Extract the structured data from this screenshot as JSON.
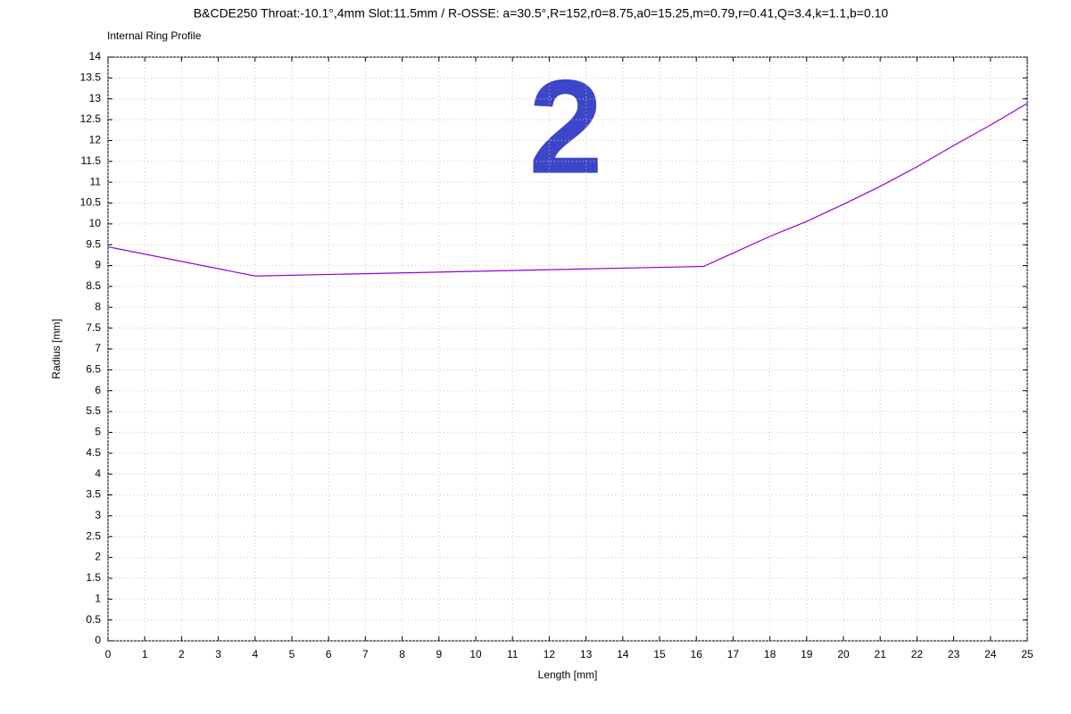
{
  "chart_data": {
    "type": "line",
    "title": "B&CDE250 Throat:-10.1°,4mm Slot:11.5mm / R-OSSE: a=30.5°,R=152,r0=8.75,a0=15.25,m=0.79,r=0.41,Q=3.4,k=1.1,b=0.10",
    "subtitle": "Internal Ring Profile",
    "annotation": "2",
    "x_label": "Length [mm]",
    "y_label": "Radius [mm]",
    "x": [
      0,
      4,
      16.2,
      17,
      18,
      19,
      20,
      21,
      22,
      23,
      24,
      25
    ],
    "series": [
      {
        "color": "#9400d3",
        "values": [
          9.45,
          8.75,
          8.98,
          9.3,
          9.7,
          10.06,
          10.47,
          10.9,
          11.37,
          11.88,
          12.37,
          12.89
        ]
      }
    ],
    "xlim": [
      0,
      25
    ],
    "ylim": [
      0,
      14
    ],
    "xticks": [
      0,
      1,
      2,
      3,
      4,
      5,
      6,
      7,
      8,
      9,
      10,
      11,
      12,
      13,
      14,
      15,
      16,
      17,
      18,
      19,
      20,
      21,
      22,
      23,
      24,
      25
    ],
    "yticks": [
      0,
      0.5,
      1,
      1.5,
      2,
      2.5,
      3,
      3.5,
      4,
      4.5,
      5,
      5.5,
      6,
      6.5,
      7,
      7.5,
      8,
      8.5,
      9,
      9.5,
      10,
      10.5,
      11,
      11.5,
      12,
      12.5,
      13,
      13.5,
      14
    ],
    "grid": true
  }
}
